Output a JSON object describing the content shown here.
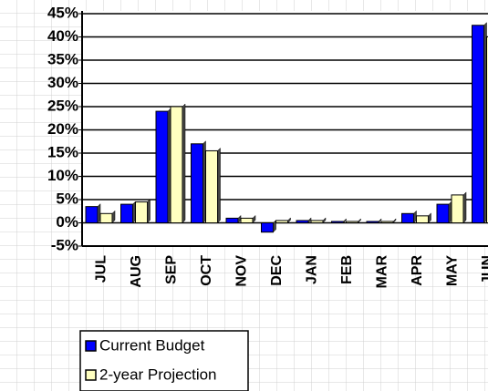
{
  "chart_data": {
    "type": "bar",
    "categories": [
      "JUL",
      "AUG",
      "SEP",
      "OCT",
      "NOV",
      "DEC",
      "JAN",
      "FEB",
      "MAR",
      "APR",
      "MAY",
      "JUN"
    ],
    "series": [
      {
        "name": "Current Budget",
        "color": "#0000ff",
        "values": [
          3.5,
          4,
          24,
          17,
          1,
          -2,
          0.5,
          0.3,
          0.3,
          2,
          4,
          42.5
        ]
      },
      {
        "name": "2-year Projection",
        "color": "#ffffc0",
        "values": [
          2,
          4.5,
          25,
          15.5,
          1,
          0.5,
          0.5,
          0.3,
          0.3,
          1.5,
          6,
          40
        ]
      }
    ],
    "ylim": [
      -5,
      45
    ],
    "yticks": [
      {
        "value": -5,
        "label": "-5%"
      },
      {
        "value": 0,
        "label": "0%"
      },
      {
        "value": 5,
        "label": "5%"
      },
      {
        "value": 10,
        "label": "10%"
      },
      {
        "value": 15,
        "label": "15%"
      },
      {
        "value": 20,
        "label": "20%"
      },
      {
        "value": 25,
        "label": "25%"
      },
      {
        "value": 30,
        "label": "30%"
      },
      {
        "value": 35,
        "label": "35%"
      },
      {
        "value": 40,
        "label": "40%"
      },
      {
        "value": 45,
        "label": "45%"
      }
    ],
    "grid": true
  }
}
